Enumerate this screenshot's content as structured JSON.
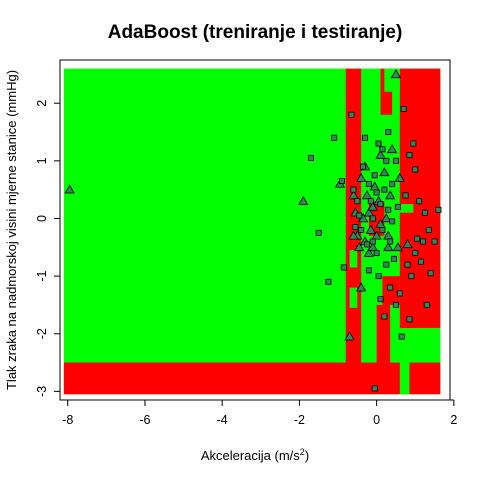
{
  "chart_data": {
    "type": "scatter",
    "title": "AdaBoost (treniranje i testiranje)",
    "xlabel": "Akceleracija (m/s",
    "xlabel_sup": "2",
    "xlabel_close": ")",
    "ylabel": "Tlak zraka na nadmorskoj visini mjerne stanice (mmHg)",
    "xlim": [
      -8.2,
      1.9
    ],
    "ylim": [
      -3.15,
      2.75
    ],
    "x_ticks": [
      -8,
      -6,
      -4,
      -2,
      0,
      2
    ],
    "x_tick_labels": [
      "-8",
      "-6",
      "-4",
      "-2",
      "0",
      "2"
    ],
    "y_ticks": [
      -3,
      -2,
      -1,
      0,
      1,
      2
    ],
    "y_tick_labels": [
      "-3",
      "-2",
      "-1",
      "0",
      "1",
      "2"
    ],
    "grid": false,
    "colors": {
      "region_a": "#00ff00",
      "region_b": "#ff0000",
      "marker_fill": "#2e8b57",
      "marker_edge": "#000000"
    },
    "regions": {
      "domain": {
        "x": [
          -8.1,
          1.65
        ],
        "y": [
          -3.05,
          2.6
        ]
      },
      "background_class": "green",
      "red_blocks": [
        {
          "x": [
            -8.1,
            1.65
          ],
          "y": [
            -3.05,
            -2.5
          ]
        },
        {
          "x": [
            -0.8,
            -0.4
          ],
          "y": [
            -2.5,
            2.6
          ]
        },
        {
          "x": [
            0.6,
            1.65
          ],
          "y": [
            -1.9,
            2.6
          ]
        },
        {
          "x": [
            -0.2,
            0.2
          ],
          "y": [
            -0.3,
            0.3
          ]
        },
        {
          "x": [
            0.1,
            0.4
          ],
          "y": [
            1.8,
            2.6
          ]
        },
        {
          "x": [
            0.0,
            0.35
          ],
          "y": [
            -2.5,
            -1.5
          ]
        },
        {
          "x": [
            0.15,
            0.6
          ],
          "y": [
            -1.5,
            -1.0
          ]
        }
      ],
      "green_blocks": [
        {
          "x": [
            -0.7,
            -0.5
          ],
          "y": [
            -0.85,
            -0.55
          ]
        },
        {
          "x": [
            -0.7,
            -0.5
          ],
          "y": [
            -1.55,
            -1.2
          ]
        },
        {
          "x": [
            0.05,
            0.3
          ],
          "y": [
            0.6,
            1.5
          ]
        },
        {
          "x": [
            0.4,
            0.6
          ],
          "y": [
            -2.5,
            -2.2
          ]
        },
        {
          "x": [
            0.85,
            1.65
          ],
          "y": [
            -2.5,
            -1.9
          ]
        },
        {
          "x": [
            0.6,
            0.85
          ],
          "y": [
            -3.05,
            -2.5
          ]
        },
        {
          "x": [
            0.6,
            0.95
          ],
          "y": [
            0.1,
            0.25
          ]
        },
        {
          "x": [
            0.2,
            0.6
          ],
          "y": [
            2.2,
            2.6
          ]
        }
      ]
    },
    "series": [
      {
        "marker": "triangle",
        "points": [
          [
            -7.95,
            0.5
          ],
          [
            -1.9,
            0.3
          ],
          [
            -0.95,
            0.6
          ],
          [
            -0.6,
            0.4
          ],
          [
            -0.55,
            0.1
          ],
          [
            -0.5,
            -0.3
          ],
          [
            -0.45,
            -0.5
          ],
          [
            -0.4,
            0.7
          ],
          [
            -0.4,
            -1.2
          ],
          [
            -0.35,
            0.0
          ],
          [
            -0.3,
            -0.4
          ],
          [
            -0.3,
            0.9
          ],
          [
            -0.25,
            0.4
          ],
          [
            -0.2,
            0.1
          ],
          [
            -0.2,
            -0.6
          ],
          [
            -0.15,
            -0.2
          ],
          [
            -0.1,
            0.2
          ],
          [
            -0.05,
            0.55
          ],
          [
            0.0,
            -0.3
          ],
          [
            0.05,
            0.3
          ],
          [
            0.1,
            1.1
          ],
          [
            0.1,
            -0.1
          ],
          [
            0.2,
            0.8
          ],
          [
            0.25,
            0.0
          ],
          [
            0.3,
            -0.5
          ],
          [
            0.35,
            0.4
          ],
          [
            0.4,
            1.2
          ],
          [
            0.5,
            2.5
          ],
          [
            0.55,
            -0.5
          ],
          [
            0.6,
            0.7
          ],
          [
            0.8,
            -0.45
          ],
          [
            -0.7,
            -2.05
          ],
          [
            -0.1,
            -0.5
          ],
          [
            0.3,
            -0.3
          ],
          [
            -0.6,
            -0.3
          ]
        ]
      },
      {
        "marker": "square",
        "points": [
          [
            -1.5,
            -0.25
          ],
          [
            -1.25,
            -1.1
          ],
          [
            -0.9,
            0.65
          ],
          [
            -0.85,
            -0.85
          ],
          [
            -0.65,
            1.8
          ],
          [
            -0.6,
            0.5
          ],
          [
            -0.55,
            -0.15
          ],
          [
            -0.5,
            0.3
          ],
          [
            -0.45,
            0.05
          ],
          [
            -0.4,
            -0.2
          ],
          [
            -0.35,
            0.9
          ],
          [
            -0.3,
            1.4
          ],
          [
            -0.25,
            -0.45
          ],
          [
            -0.2,
            0.6
          ],
          [
            -0.2,
            -0.9
          ],
          [
            -0.15,
            0.3
          ],
          [
            -0.1,
            0.0
          ],
          [
            -0.1,
            -0.4
          ],
          [
            -0.05,
            0.75
          ],
          [
            -0.05,
            -2.95
          ],
          [
            0.0,
            0.45
          ],
          [
            0.0,
            -0.6
          ],
          [
            0.05,
            1.3
          ],
          [
            0.05,
            -1.0
          ],
          [
            0.1,
            0.25
          ],
          [
            0.1,
            -1.4
          ],
          [
            0.15,
            1.2
          ],
          [
            0.15,
            -0.2
          ],
          [
            0.2,
            0.5
          ],
          [
            0.2,
            -1.7
          ],
          [
            0.25,
            1.0
          ],
          [
            0.25,
            -0.8
          ],
          [
            0.3,
            0.15
          ],
          [
            0.3,
            1.5
          ],
          [
            0.35,
            -0.4
          ],
          [
            0.35,
            -1.2
          ],
          [
            0.4,
            0.6
          ],
          [
            0.4,
            -0.05
          ],
          [
            0.45,
            -0.7
          ],
          [
            0.5,
            1.0
          ],
          [
            0.5,
            -1.5
          ],
          [
            0.55,
            0.2
          ],
          [
            0.6,
            -1.3
          ],
          [
            0.65,
            -2.05
          ],
          [
            0.7,
            1.9
          ],
          [
            0.75,
            0.4
          ],
          [
            0.8,
            -0.8
          ],
          [
            0.85,
            1.1
          ],
          [
            0.9,
            -1.0
          ],
          [
            0.95,
            1.3
          ],
          [
            1.0,
            -0.6
          ],
          [
            1.05,
            -0.35
          ],
          [
            1.1,
            0.3
          ],
          [
            1.15,
            -0.75
          ],
          [
            1.2,
            -0.4
          ],
          [
            1.25,
            0.1
          ],
          [
            1.3,
            -1.5
          ],
          [
            1.35,
            -0.2
          ],
          [
            1.4,
            -0.95
          ],
          [
            1.5,
            -0.4
          ],
          [
            1.6,
            0.15
          ],
          [
            -1.7,
            1.05
          ],
          [
            -1.1,
            1.4
          ],
          [
            0.85,
            -1.75
          ],
          [
            1.0,
            0.85
          ]
        ]
      }
    ]
  }
}
